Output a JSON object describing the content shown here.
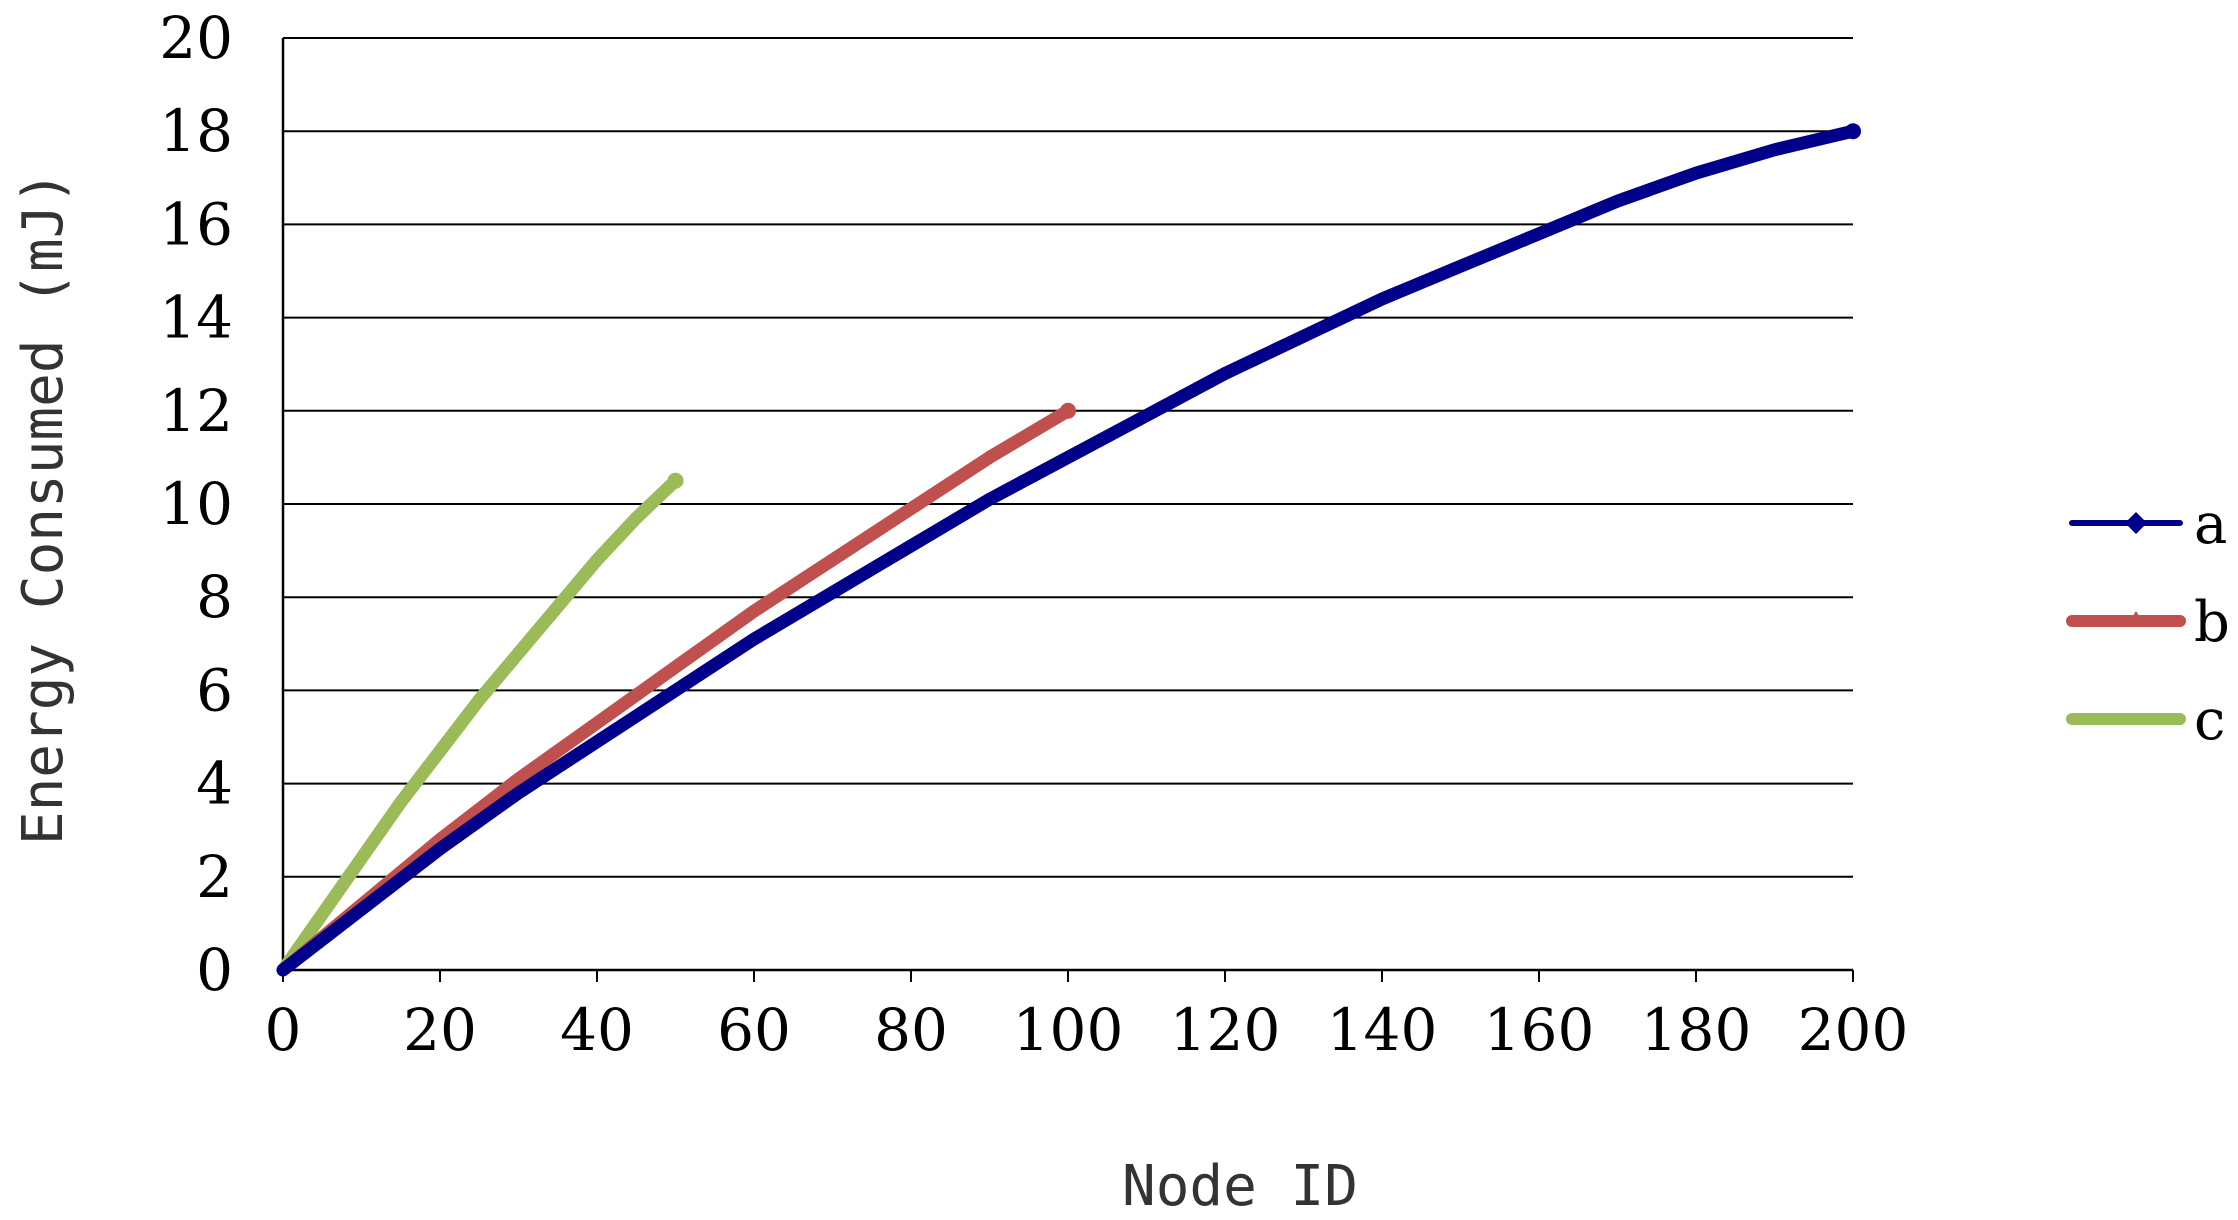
{
  "chart_data": {
    "type": "line",
    "title": "",
    "xlabel": "Node ID",
    "ylabel": "Energy Consumed (mJ)",
    "xlim": [
      0,
      200
    ],
    "ylim": [
      0,
      20
    ],
    "x_ticks": [
      0,
      20,
      40,
      60,
      80,
      100,
      120,
      140,
      160,
      180,
      200
    ],
    "y_ticks": [
      0,
      2,
      4,
      6,
      8,
      10,
      12,
      14,
      16,
      18,
      20
    ],
    "grid": "horizontal",
    "legend": "right",
    "series": [
      {
        "name": "a",
        "color": "#00008B",
        "marker": "diamond",
        "x": [
          0,
          10,
          20,
          30,
          40,
          50,
          60,
          70,
          80,
          90,
          100,
          110,
          120,
          130,
          140,
          150,
          160,
          170,
          180,
          190,
          200
        ],
        "y": [
          0,
          1.3,
          2.6,
          3.8,
          4.9,
          6.0,
          7.1,
          8.1,
          9.1,
          10.1,
          11.0,
          11.9,
          12.8,
          13.6,
          14.4,
          15.1,
          15.8,
          16.5,
          17.1,
          17.6,
          18.0
        ]
      },
      {
        "name": "b",
        "color": "#C0504D",
        "marker": "triangle",
        "x": [
          0,
          10,
          20,
          30,
          40,
          50,
          60,
          70,
          80,
          90,
          100
        ],
        "y": [
          0,
          1.4,
          2.8,
          4.1,
          5.3,
          6.5,
          7.7,
          8.8,
          9.9,
          11.0,
          12.0
        ]
      },
      {
        "name": "c",
        "color": "#9BBB59",
        "marker": "square",
        "x": [
          0,
          5,
          10,
          15,
          20,
          25,
          30,
          35,
          40,
          45,
          50
        ],
        "y": [
          0,
          1.2,
          2.4,
          3.6,
          4.7,
          5.8,
          6.8,
          7.8,
          8.8,
          9.7,
          10.5
        ]
      }
    ]
  }
}
